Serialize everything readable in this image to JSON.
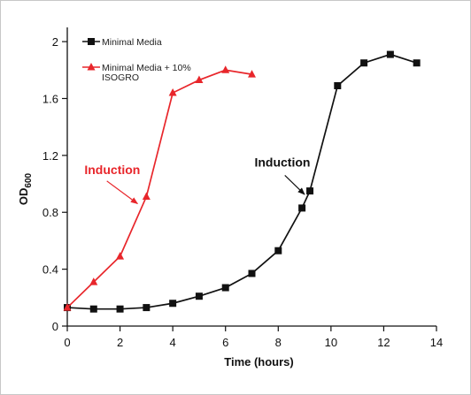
{
  "chart_data": {
    "type": "line",
    "title": "",
    "xlabel": "Time (hours)",
    "ylabel": "OD",
    "ylabel_subscript": "600",
    "xlim": [
      0,
      14
    ],
    "ylim": [
      0,
      2.1
    ],
    "x_ticks": [
      "0",
      "2",
      "4",
      "6",
      "8",
      "10",
      "12",
      "14"
    ],
    "y_ticks": [
      "0",
      "0.4",
      "0.8",
      "1.2",
      "1.6",
      "2"
    ],
    "grid": false,
    "legend_position": "top-left",
    "series": [
      {
        "name": "Minimal Media",
        "color": "#111111",
        "marker": "square",
        "x": [
          0,
          1,
          2,
          3,
          4,
          5,
          6,
          7,
          8,
          8.9,
          9.2,
          10.25,
          11.25,
          12.25,
          13.25
        ],
        "y": [
          0.13,
          0.12,
          0.12,
          0.13,
          0.16,
          0.21,
          0.27,
          0.37,
          0.53,
          0.83,
          0.95,
          1.69,
          1.85,
          1.91,
          1.85
        ]
      },
      {
        "name": "Minimal Media + 10% ISOGRO",
        "color": "#e8262b",
        "marker": "triangle",
        "x": [
          0,
          1,
          2,
          3,
          4,
          5,
          6,
          7
        ],
        "y": [
          0.13,
          0.31,
          0.49,
          0.91,
          1.64,
          1.73,
          1.8,
          1.77
        ]
      }
    ],
    "annotations": [
      {
        "text": "Induction",
        "color": "#e8262b",
        "at": [
          3.0,
          0.91
        ]
      },
      {
        "text": "Induction",
        "color": "#111111",
        "at": [
          9.2,
          0.95
        ]
      }
    ]
  },
  "legend": {
    "item1": "Minimal Media",
    "item2_line1": "Minimal Media + 10%",
    "item2_line2": "ISOGRO"
  }
}
